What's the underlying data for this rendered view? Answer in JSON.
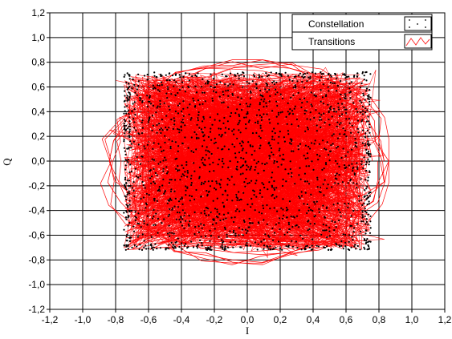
{
  "chart_data": {
    "type": "scatter",
    "title": "",
    "xlabel": "I",
    "ylabel": "Q",
    "xlim": [
      -1.2,
      1.2
    ],
    "ylim": [
      -1.2,
      1.2
    ],
    "x_ticks": [
      "-1,2",
      "-1,0",
      "-0,8",
      "-0,6",
      "-0,4",
      "-0,2",
      "0,0",
      "0,2",
      "0,4",
      "0,6",
      "0,8",
      "1,0",
      "1,2"
    ],
    "y_ticks": [
      "1,2",
      "1,0",
      "0,8",
      "0,6",
      "0,4",
      "0,2",
      "0,0",
      "-0,2",
      "-0,4",
      "-0,6",
      "-0,8",
      "-1,0",
      "-1,2"
    ],
    "grid": true,
    "legend_position": "top-right",
    "series": [
      {
        "name": "Constellation",
        "kind": "points",
        "color": "#000000",
        "marker": "small-dot",
        "region": {
          "x": [
            -0.75,
            0.75
          ],
          "y": [
            -0.72,
            0.72
          ]
        },
        "sample_points": [
          [
            -0.72,
            0.7
          ],
          [
            -0.55,
            0.68
          ],
          [
            -0.3,
            0.71
          ],
          [
            -0.05,
            0.69
          ],
          [
            0.2,
            0.7
          ],
          [
            0.45,
            0.68
          ],
          [
            0.7,
            0.71
          ],
          [
            -0.7,
            0.4
          ],
          [
            -0.42,
            0.45
          ],
          [
            -0.18,
            0.38
          ],
          [
            0.1,
            0.44
          ],
          [
            0.35,
            0.41
          ],
          [
            0.6,
            0.39
          ],
          [
            0.74,
            0.5
          ],
          [
            -0.73,
            0.1
          ],
          [
            -0.5,
            0.15
          ],
          [
            -0.25,
            0.05
          ],
          [
            0.02,
            0.12
          ],
          [
            0.28,
            0.08
          ],
          [
            0.52,
            0.14
          ],
          [
            0.71,
            0.03
          ],
          [
            -0.71,
            -0.2
          ],
          [
            -0.47,
            -0.15
          ],
          [
            -0.2,
            -0.22
          ],
          [
            0.05,
            -0.18
          ],
          [
            0.33,
            -0.25
          ],
          [
            0.58,
            -0.17
          ],
          [
            0.73,
            -0.3
          ],
          [
            -0.72,
            -0.45
          ],
          [
            -0.52,
            -0.5
          ],
          [
            -0.28,
            -0.42
          ],
          [
            -0.02,
            -0.48
          ],
          [
            0.22,
            -0.44
          ],
          [
            0.48,
            -0.52
          ],
          [
            0.7,
            -0.41
          ],
          [
            -0.7,
            -0.7
          ],
          [
            -0.45,
            -0.68
          ],
          [
            -0.15,
            -0.71
          ],
          [
            0.12,
            -0.69
          ],
          [
            0.38,
            -0.7
          ],
          [
            0.62,
            -0.72
          ],
          [
            0.74,
            -0.65
          ]
        ]
      },
      {
        "name": "Transitions",
        "kind": "line",
        "color": "#ff0000",
        "region": {
          "x": [
            -0.9,
            0.85
          ],
          "y": [
            -0.85,
            0.8
          ]
        }
      }
    ]
  },
  "legend": {
    "items": [
      {
        "label": "Constellation"
      },
      {
        "label": "Transitions"
      }
    ]
  }
}
